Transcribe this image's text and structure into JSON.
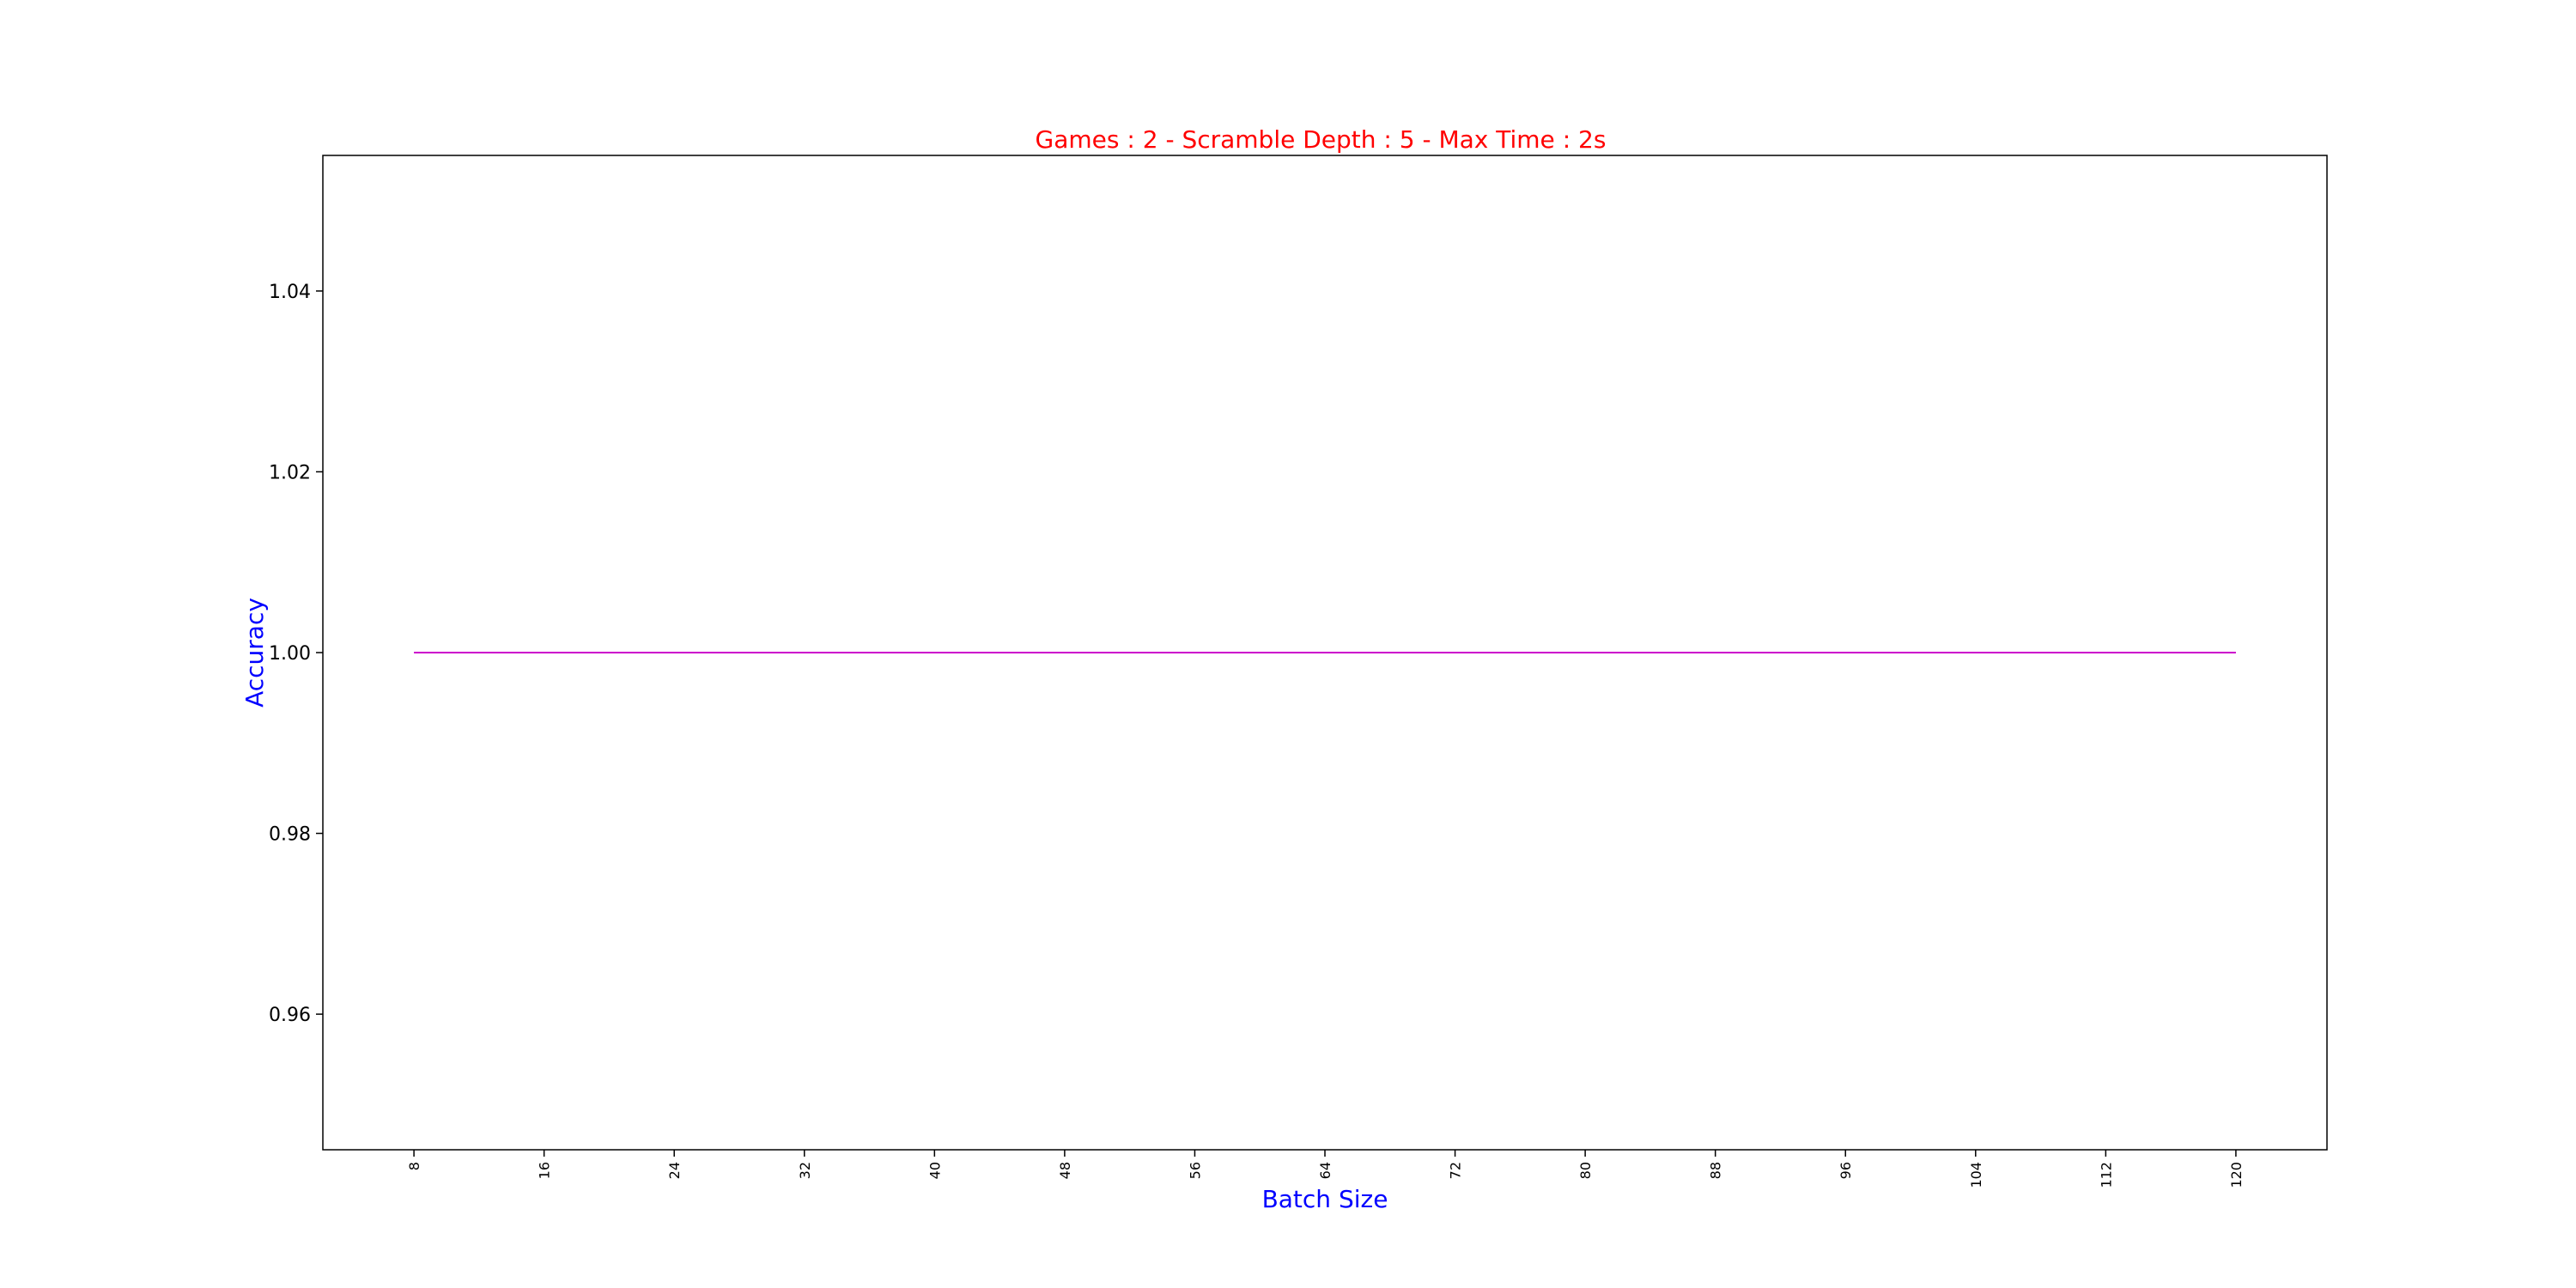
{
  "chart_data": {
    "type": "line",
    "title": "Games : 2 - Scramble Depth : 5 - Max Time : 2s",
    "xlabel": "Batch Size",
    "ylabel": "Accuracy",
    "x": [
      8,
      16,
      24,
      32,
      40,
      48,
      56,
      64,
      72,
      80,
      88,
      96,
      104,
      112,
      120
    ],
    "xlim": [
      2.4,
      125.6
    ],
    "ylim": [
      0.945,
      1.055
    ],
    "yticks": [
      0.96,
      0.98,
      1.0,
      1.02,
      1.04
    ],
    "ytick_labels": [
      "0.96",
      "0.98",
      "1.00",
      "1.02",
      "1.04"
    ],
    "xtick_labels": [
      "8",
      "16",
      "24",
      "32",
      "40",
      "48",
      "56",
      "64",
      "72",
      "80",
      "88",
      "96",
      "104",
      "112",
      "120"
    ],
    "grid": false,
    "series": [
      {
        "color": "#cc00cc",
        "values": [
          1.0,
          1.0,
          1.0,
          1.0,
          1.0,
          1.0,
          1.0,
          1.0,
          1.0,
          1.0,
          1.0,
          1.0,
          1.0,
          1.0,
          1.0
        ]
      }
    ],
    "colors": {
      "title": "#ff0000",
      "axis_labels": "#0000ff"
    }
  }
}
